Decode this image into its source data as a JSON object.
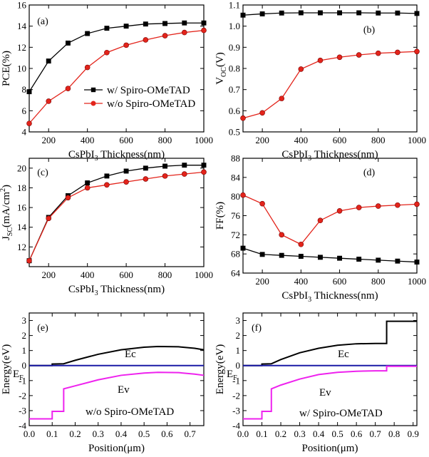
{
  "colors": {
    "black": "#000000",
    "red": "#e3241b",
    "blue": "#1a1aa6",
    "magenta": "#ee22ee"
  },
  "chart_data": [
    {
      "id": "a",
      "type": "line",
      "panel_label": "(a)",
      "xlabel": "CsPbI3 Thickness(nm)",
      "xlabel_main": "CsPbI",
      "xlabel_sub": "3",
      "xlabel_rest": " Thickness(nm)",
      "ylabel": "PCE(%)",
      "ylabel_parts": [
        {
          "t": "PCE(%)",
          "sub": false
        }
      ],
      "xlim": [
        100,
        1000
      ],
      "ylim": [
        4,
        16
      ],
      "xticks": [
        200,
        400,
        600,
        800,
        1000
      ],
      "yticks": [
        4,
        6,
        8,
        10,
        12,
        14,
        16
      ],
      "legend": {
        "position": "center-right",
        "entries": [
          {
            "label": "w/  Spiro-OMeTAD",
            "series": 0
          },
          {
            "label": "w/o Spiro-OMeTAD",
            "series": 1
          }
        ]
      },
      "series": [
        {
          "name": "w/ Spiro-OMeTAD",
          "color": "#000000",
          "marker": "square",
          "x": [
            100,
            200,
            300,
            400,
            500,
            600,
            700,
            800,
            900,
            1000
          ],
          "y": [
            7.8,
            10.7,
            12.4,
            13.3,
            13.8,
            14.0,
            14.2,
            14.25,
            14.3,
            14.3
          ]
        },
        {
          "name": "w/o Spiro-OMeTAD",
          "color": "#e3241b",
          "marker": "circle",
          "x": [
            100,
            200,
            300,
            400,
            500,
            600,
            700,
            800,
            900,
            1000
          ],
          "y": [
            4.8,
            6.9,
            8.1,
            10.1,
            11.5,
            12.2,
            12.7,
            13.1,
            13.4,
            13.6
          ]
        }
      ]
    },
    {
      "id": "b",
      "type": "line",
      "panel_label": "(b)",
      "xlabel": "CsPbI3 Thickness(nm)",
      "xlabel_main": "CsPbI",
      "xlabel_sub": "3",
      "xlabel_rest": " Thickness(nm)",
      "ylabel": "VOC(V)",
      "ylabel_parts": [
        {
          "t": "V",
          "sub": false
        },
        {
          "t": "OC",
          "sub": true
        },
        {
          "t": "(V)",
          "sub": false
        }
      ],
      "xlim": [
        100,
        1000
      ],
      "ylim": [
        0.5,
        1.1
      ],
      "xticks": [
        200,
        400,
        600,
        800,
        1000
      ],
      "yticks": [
        0.5,
        0.6,
        0.7,
        0.8,
        0.9,
        1.0,
        1.1
      ],
      "series": [
        {
          "name": "w/ Spiro-OMeTAD",
          "color": "#000000",
          "marker": "square",
          "x": [
            100,
            200,
            300,
            400,
            500,
            600,
            700,
            800,
            900,
            1000
          ],
          "y": [
            1.052,
            1.058,
            1.062,
            1.063,
            1.063,
            1.063,
            1.063,
            1.062,
            1.062,
            1.06
          ]
        },
        {
          "name": "w/o Spiro-OMeTAD",
          "color": "#e3241b",
          "marker": "circle",
          "x": [
            100,
            200,
            300,
            400,
            500,
            600,
            700,
            800,
            900,
            1000
          ],
          "y": [
            0.565,
            0.59,
            0.658,
            0.797,
            0.838,
            0.853,
            0.864,
            0.872,
            0.876,
            0.88
          ]
        }
      ]
    },
    {
      "id": "c",
      "type": "line",
      "panel_label": "(c)",
      "xlabel": "CsPbI3 Thickness(nm)",
      "xlabel_main": "CsPbI",
      "xlabel_sub": "3",
      "xlabel_rest": " Thickness(nm)",
      "ylabel": "JSC(mA/cm2)",
      "ylabel_parts": [
        {
          "t": "J",
          "sub": false
        },
        {
          "t": "SC",
          "sub": true
        },
        {
          "t": "(mA/cm",
          "sub": false
        },
        {
          "t": "2",
          "sup": true
        },
        {
          "t": ")",
          "sub": false
        }
      ],
      "xlim": [
        100,
        1000
      ],
      "ylim": [
        10,
        21
      ],
      "xticks": [
        200,
        400,
        600,
        800,
        1000
      ],
      "yticks": [
        12,
        14,
        16,
        18,
        20
      ],
      "series": [
        {
          "name": "w/ Spiro-OMeTAD",
          "color": "#000000",
          "marker": "square",
          "x": [
            100,
            200,
            300,
            400,
            500,
            600,
            700,
            800,
            900,
            1000
          ],
          "y": [
            10.6,
            15.0,
            17.2,
            18.5,
            19.2,
            19.7,
            20.0,
            20.2,
            20.3,
            20.3
          ]
        },
        {
          "name": "w/o Spiro-OMeTAD",
          "color": "#e3241b",
          "marker": "circle",
          "x": [
            100,
            200,
            300,
            400,
            500,
            600,
            700,
            800,
            900,
            1000
          ],
          "y": [
            10.6,
            14.9,
            17.0,
            18.0,
            18.3,
            18.6,
            18.9,
            19.2,
            19.4,
            19.6
          ]
        }
      ]
    },
    {
      "id": "d",
      "type": "line",
      "panel_label": "(d)",
      "xlabel": "CsPbI3 Thickness(nm)",
      "xlabel_main": "CsPbI",
      "xlabel_sub": "3",
      "xlabel_rest": " Thickness(nm)",
      "ylabel": "FF(%)",
      "ylabel_parts": [
        {
          "t": "FF(%)",
          "sub": false
        }
      ],
      "xlim": [
        100,
        1000
      ],
      "ylim": [
        64,
        88
      ],
      "xticks": [
        200,
        400,
        600,
        800,
        1000
      ],
      "yticks": [
        64,
        68,
        72,
        76,
        80,
        84,
        88
      ],
      "series": [
        {
          "name": "w/ Spiro-OMeTAD",
          "color": "#000000",
          "marker": "square",
          "x": [
            100,
            200,
            300,
            400,
            500,
            600,
            700,
            800,
            900,
            1000
          ],
          "y": [
            69.2,
            67.9,
            67.7,
            67.5,
            67.3,
            67.1,
            66.9,
            66.7,
            66.5,
            66.3
          ]
        },
        {
          "name": "w/o Spiro-OMeTAD",
          "color": "#e3241b",
          "marker": "circle",
          "x": [
            100,
            200,
            300,
            400,
            500,
            600,
            700,
            800,
            900,
            1000
          ],
          "y": [
            80.3,
            78.5,
            72.0,
            70.0,
            75.0,
            77.0,
            77.7,
            78.0,
            78.2,
            78.4
          ]
        }
      ]
    },
    {
      "id": "e",
      "type": "line",
      "panel_label": "(e)",
      "xlabel": "Position(μm)",
      "xlabel_main": "Position(",
      "xlabel_sub": "",
      "xlabel_rest": "μm)",
      "ylabel": "Energy(eV)",
      "ylabel_parts": [
        {
          "t": "Energy(eV)",
          "sub": false
        }
      ],
      "xlim": [
        0,
        0.76
      ],
      "ylim": [
        -4,
        3.5
      ],
      "xticks": [
        0.0,
        0.1,
        0.2,
        0.3,
        0.4,
        0.5,
        0.6,
        0.7
      ],
      "yticks": [
        -4,
        -3,
        -2,
        -1,
        0,
        1,
        2,
        3
      ],
      "annotations": {
        "ec": "Ec",
        "ev": "Ev",
        "ef": "EF",
        "ef_main": "E",
        "ef_sub": "F",
        "note": "w/o Spiro-OMeTAD"
      },
      "series": [
        {
          "name": "Ec",
          "color": "#000000",
          "x": [
            0,
            0.1,
            0.1,
            0.15,
            0.2,
            0.3,
            0.4,
            0.5,
            0.56,
            0.65,
            0.72,
            0.76
          ],
          "y": [
            0.0,
            0.0,
            0.1,
            0.12,
            0.35,
            0.75,
            1.05,
            1.22,
            1.27,
            1.25,
            1.15,
            1.05
          ]
        },
        {
          "name": "EF",
          "color": "#1a1aa6",
          "x": [
            0,
            0.76
          ],
          "y": [
            0,
            0
          ]
        },
        {
          "name": "Ev",
          "color": "#ee22ee",
          "x": [
            0,
            0.1,
            0.1,
            0.15,
            0.15,
            0.2,
            0.3,
            0.4,
            0.5,
            0.56,
            0.65,
            0.72,
            0.76
          ],
          "y": [
            -3.55,
            -3.55,
            -3.05,
            -3.05,
            -1.55,
            -1.35,
            -0.95,
            -0.65,
            -0.5,
            -0.45,
            -0.47,
            -0.57,
            -0.65
          ]
        }
      ]
    },
    {
      "id": "f",
      "type": "line",
      "panel_label": "(f)",
      "xlabel": "Position(μm)",
      "xlabel_main": "Position(",
      "xlabel_sub": "",
      "xlabel_rest": "μm)",
      "ylabel": "Energy(eV)",
      "ylabel_parts": [
        {
          "t": "Energy(eV)",
          "sub": false
        }
      ],
      "xlim": [
        0,
        0.92
      ],
      "ylim": [
        -4,
        3.5
      ],
      "xticks": [
        0.0,
        0.1,
        0.2,
        0.3,
        0.4,
        0.5,
        0.6,
        0.7,
        0.8,
        0.9
      ],
      "yticks": [
        -4,
        -3,
        -2,
        -1,
        0,
        1,
        2,
        3
      ],
      "annotations": {
        "ec": "Ec",
        "ev": "Ev",
        "ef": "EF",
        "ef_main": "E",
        "ef_sub": "F",
        "note": "w/  Spiro-OMeTAD"
      },
      "series": [
        {
          "name": "Ec",
          "color": "#000000",
          "x": [
            0,
            0.1,
            0.1,
            0.15,
            0.2,
            0.3,
            0.4,
            0.5,
            0.6,
            0.7,
            0.76,
            0.76,
            0.92
          ],
          "y": [
            0.0,
            0.0,
            0.1,
            0.12,
            0.4,
            0.85,
            1.15,
            1.35,
            1.45,
            1.47,
            1.47,
            2.95,
            2.95
          ]
        },
        {
          "name": "EF",
          "color": "#1a1aa6",
          "x": [
            0,
            0.92
          ],
          "y": [
            0,
            0
          ]
        },
        {
          "name": "Ev",
          "color": "#ee22ee",
          "x": [
            0,
            0.1,
            0.1,
            0.15,
            0.15,
            0.2,
            0.3,
            0.4,
            0.5,
            0.6,
            0.7,
            0.76,
            0.76,
            0.92
          ],
          "y": [
            -3.55,
            -3.55,
            -3.05,
            -3.05,
            -1.55,
            -1.3,
            -0.9,
            -0.6,
            -0.45,
            -0.38,
            -0.35,
            -0.35,
            -0.05,
            -0.05
          ]
        }
      ]
    }
  ]
}
